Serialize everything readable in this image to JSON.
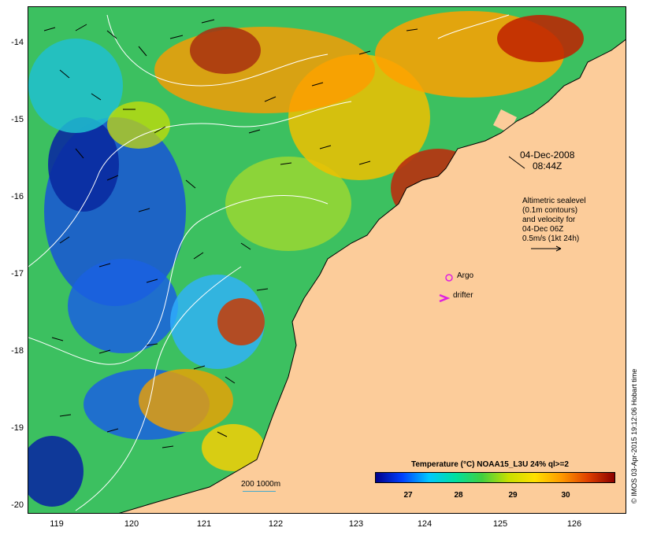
{
  "map": {
    "lat_ticks": [
      "-14",
      "-15",
      "-16",
      "-17",
      "-18",
      "-19",
      "-20"
    ],
    "lon_ticks": [
      "119",
      "120",
      "121",
      "122",
      "123",
      "124",
      "125",
      "126"
    ],
    "date_line1": "04-Dec-2008",
    "date_line2": "08:44Z",
    "sealevel_lines": [
      "Altimetric sealevel",
      "(0.1m contours)",
      "and velocity for",
      "04-Dec 06Z",
      "0.5m/s (1kt 24h)"
    ],
    "argo_label": "Argo",
    "drifter_label": "drifter",
    "scale_label": "200  1000m",
    "colors": {
      "land": "#fccc9a",
      "argo_marker": "#e020e0",
      "drifter_marker": "#e020e0"
    }
  },
  "colorbar": {
    "title": "Temperature (°C) NOAA15_L3U 24% ql>=2",
    "ticks": [
      "27",
      "28",
      "29",
      "30"
    ],
    "colors": [
      "#00008b",
      "#0040ff",
      "#00c8ff",
      "#00e0a0",
      "#40d040",
      "#c8e000",
      "#ffe000",
      "#ff9a00",
      "#e04000",
      "#8b0000"
    ]
  },
  "credit": "© IMOS 03-Apr-2015 19:12:06 Hobart time"
}
